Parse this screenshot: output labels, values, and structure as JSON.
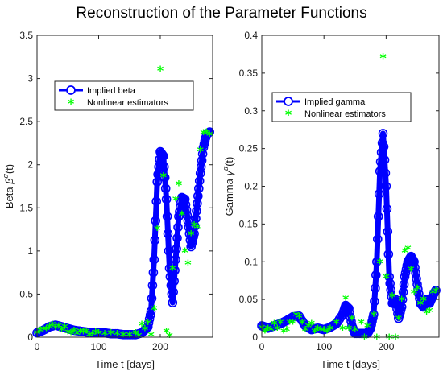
{
  "figure_title": "Reconstruction of the Parameter Functions",
  "colors": {
    "implied": "#0000ff",
    "nonlinear": "#00ff00"
  },
  "chart_data": [
    {
      "type": "line",
      "xlabel": "Time t [days]",
      "ylabel_prefix": "Beta ",
      "ylabel_symbol": "β",
      "ylabel_sup": "α",
      "ylabel_suffix": "(t)",
      "xlim": [
        0,
        285
      ],
      "ylim": [
        0,
        3.5
      ],
      "xticks": [
        0,
        100,
        200
      ],
      "yticks": [
        0,
        0.5,
        1,
        1.5,
        2,
        2.5,
        3,
        3.5
      ],
      "ytick_labels": [
        "0",
        "0.5",
        "1",
        "1.5",
        "2",
        "2.5",
        "3",
        "3.5"
      ],
      "legend": [
        "Implied beta",
        "Nonlinear estimators"
      ],
      "legend_position": "upper-center",
      "series": [
        {
          "name": "Implied beta",
          "style": "line-with-circles",
          "x": [
            0,
            10,
            20,
            30,
            40,
            50,
            60,
            70,
            80,
            90,
            100,
            110,
            120,
            130,
            140,
            150,
            160,
            170,
            180,
            185,
            190,
            195,
            200,
            205,
            210,
            215,
            220,
            225,
            230,
            235,
            240,
            245,
            250,
            255,
            260,
            265,
            270,
            275,
            280
          ],
          "y": [
            0.05,
            0.08,
            0.12,
            0.14,
            0.12,
            0.1,
            0.08,
            0.07,
            0.06,
            0.05,
            0.05,
            0.05,
            0.04,
            0.04,
            0.03,
            0.03,
            0.03,
            0.05,
            0.12,
            0.3,
            0.9,
            1.8,
            2.15,
            2.1,
            1.6,
            0.8,
            0.4,
            0.9,
            1.4,
            1.62,
            1.6,
            1.35,
            1.05,
            1.2,
            1.55,
            1.9,
            2.2,
            2.35,
            2.38
          ]
        },
        {
          "name": "Nonlinear estimators",
          "style": "asterisk",
          "x": [
            0,
            5,
            10,
            15,
            20,
            25,
            30,
            35,
            40,
            45,
            50,
            55,
            60,
            65,
            70,
            75,
            80,
            85,
            90,
            95,
            100,
            110,
            120,
            130,
            140,
            150,
            160,
            165,
            170,
            175,
            180,
            185,
            190,
            195,
            200,
            205,
            210,
            215,
            220,
            225,
            230,
            235,
            240,
            245,
            250,
            255,
            260,
            265,
            270,
            275,
            280
          ],
          "y": [
            0.05,
            0.08,
            0.1,
            0.1,
            0.12,
            0.15,
            0.11,
            0.13,
            0.09,
            0.12,
            0.06,
            0.05,
            0.08,
            0.04,
            0.07,
            0.06,
            0.07,
            0.03,
            0.04,
            0.06,
            0.05,
            0.04,
            0.05,
            0.04,
            0.03,
            0.03,
            0.05,
            0.02,
            0.15,
            0.1,
            0.17,
            0.03,
            0.33,
            1.26,
            3.11,
            1.87,
            0.07,
            0.02,
            0.8,
            1.6,
            1.78,
            1.43,
            1.0,
            0.86,
            1.2,
            1.3,
            1.28,
            2.17,
            2.37,
            2.38,
            2.35
          ]
        }
      ]
    },
    {
      "type": "line",
      "xlabel": "Time t [days]",
      "ylabel_prefix": "Gamma ",
      "ylabel_symbol": "γ",
      "ylabel_sup": "α",
      "ylabel_suffix": "(t)",
      "xlim": [
        0,
        285
      ],
      "ylim": [
        0,
        0.4
      ],
      "xticks": [
        0,
        100,
        200
      ],
      "yticks": [
        0,
        0.05,
        0.1,
        0.15,
        0.2,
        0.25,
        0.3,
        0.35,
        0.4
      ],
      "ytick_labels": [
        "0",
        "0.05",
        "0.1",
        "0.15",
        "0.2",
        "0.25",
        "0.3",
        "0.35",
        "0.4"
      ],
      "legend": [
        "Implied gamma",
        "Nonlinear estimators"
      ],
      "legend_position": "upper-center",
      "series": [
        {
          "name": "Implied gamma",
          "style": "line-with-circles",
          "x": [
            0,
            10,
            20,
            30,
            40,
            50,
            60,
            70,
            80,
            90,
            100,
            110,
            120,
            130,
            135,
            140,
            145,
            150,
            160,
            170,
            175,
            180,
            185,
            190,
            195,
            200,
            205,
            210,
            215,
            220,
            225,
            230,
            235,
            240,
            245,
            250,
            255,
            260,
            265,
            270,
            275,
            280
          ],
          "y": [
            0.015,
            0.012,
            0.015,
            0.018,
            0.022,
            0.027,
            0.028,
            0.015,
            0.01,
            0.012,
            0.01,
            0.013,
            0.018,
            0.03,
            0.042,
            0.038,
            0.015,
            0.005,
            0.005,
            0.005,
            0.012,
            0.03,
            0.1,
            0.22,
            0.27,
            0.2,
            0.08,
            0.045,
            0.05,
            0.025,
            0.04,
            0.08,
            0.1,
            0.107,
            0.1,
            0.07,
            0.045,
            0.04,
            0.05,
            0.045,
            0.055,
            0.062
          ]
        },
        {
          "name": "Nonlinear estimators",
          "style": "asterisk",
          "x": [
            0,
            5,
            10,
            15,
            20,
            25,
            30,
            35,
            40,
            45,
            50,
            55,
            60,
            65,
            70,
            75,
            80,
            85,
            90,
            95,
            100,
            105,
            110,
            120,
            130,
            135,
            140,
            145,
            150,
            160,
            165,
            170,
            180,
            185,
            190,
            195,
            200,
            205,
            210,
            215,
            220,
            225,
            230,
            235,
            240,
            245,
            250,
            255,
            260,
            265,
            270,
            275,
            280
          ],
          "y": [
            0.013,
            0.008,
            0.012,
            0.01,
            0.018,
            0.012,
            0.02,
            0.008,
            0.01,
            0.02,
            0.02,
            0.03,
            0.028,
            0.02,
            0.01,
            0.015,
            0.018,
            0.008,
            0.012,
            0.01,
            0.01,
            0.008,
            0.012,
            0.02,
            0.012,
            0.052,
            0.012,
            0.025,
            0.01,
            0.02,
            0.0,
            0.015,
            0.03,
            0.0,
            0.1,
            0.372,
            0.08,
            0.0,
            0.055,
            0.0,
            0.025,
            0.05,
            0.114,
            0.118,
            0.09,
            0.06,
            0.065,
            0.045,
            0.05,
            0.033,
            0.035,
            0.06,
            0.062
          ]
        }
      ]
    }
  ]
}
